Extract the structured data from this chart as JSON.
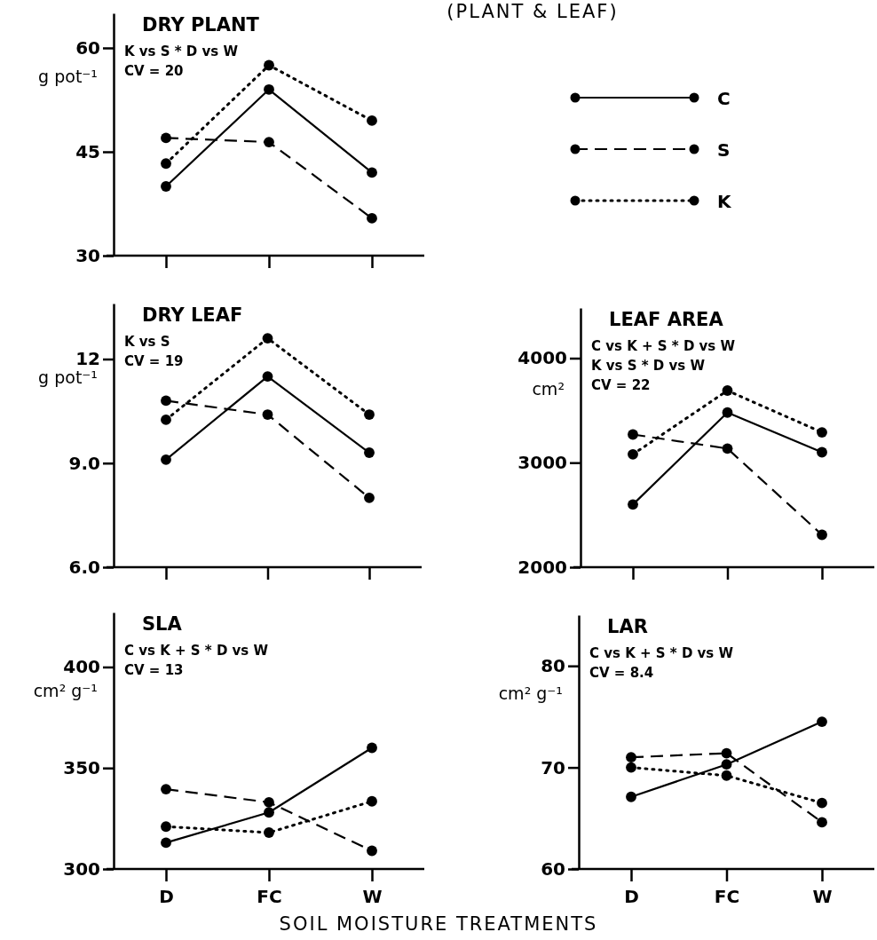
{
  "chart_data": [
    {
      "type": "line",
      "title": "DRY PLANT",
      "ylabel": "g pot⁻¹",
      "annotations": [
        "(PLANT & LEAF)",
        "K vs S * D vs W",
        "CV = 20"
      ],
      "categories": [
        null,
        null,
        null
      ],
      "ylim": [
        30,
        65
      ],
      "yticks": [
        30,
        45,
        60
      ],
      "tick_labels": "y",
      "marker": "circle",
      "legend": "right",
      "series": [
        {
          "name": "C",
          "color": "#000000",
          "line_style": "solid",
          "values": [
            40,
            54,
            42
          ]
        },
        {
          "name": "S",
          "color": "#000000",
          "line_style": "dashed",
          "values": [
            47,
            46.4,
            35.4
          ]
        },
        {
          "name": "K",
          "color": "#000000",
          "line_style": "dotted",
          "values": [
            43.3,
            57.5,
            49.5
          ]
        }
      ]
    },
    {
      "type": "line",
      "title": "DRY LEAF",
      "ylabel": "g pot⁻¹",
      "annotations": [
        "K vs S",
        "CV = 19"
      ],
      "categories": [
        null,
        null,
        null
      ],
      "ylim": [
        6,
        13.6
      ],
      "yticks": [
        {
          "value": 6,
          "label": "6.0"
        },
        {
          "value": 9,
          "label": "9.0"
        },
        12
      ],
      "tick_labels": "y",
      "marker": "circle",
      "series": [
        {
          "color": "#000000",
          "line_style": "solid",
          "values": [
            9.1,
            11.5,
            9.3
          ]
        },
        {
          "color": "#000000",
          "line_style": "dashed",
          "values": [
            10.8,
            10.4,
            8.0
          ]
        },
        {
          "color": "#000000",
          "line_style": "dotted",
          "values": [
            10.25,
            12.6,
            10.4
          ]
        }
      ]
    },
    {
      "type": "line",
      "title": "LEAF AREA",
      "ylabel": "cm²",
      "annotations": [
        "C vs K + S * D vs W",
        "K vs S * D vs W",
        "CV = 22"
      ],
      "categories": [
        null,
        null,
        null
      ],
      "ylim": [
        2000,
        4480
      ],
      "yticks": [
        2000,
        3000,
        4000
      ],
      "tick_labels": "y",
      "marker": "circle",
      "series": [
        {
          "color": "#000000",
          "line_style": "solid",
          "values": [
            2600,
            3480,
            3100
          ]
        },
        {
          "color": "#000000",
          "line_style": "dashed",
          "values": [
            3270,
            3135,
            2310
          ]
        },
        {
          "color": "#000000",
          "line_style": "dotted",
          "values": [
            3080,
            3690,
            3290
          ]
        }
      ]
    },
    {
      "type": "line",
      "title": "SLA",
      "ylabel": "cm² g⁻¹",
      "xlabel": "SOIL MOISTURE TREATMENTS",
      "annotations": [
        "C vs K + S * D vs W",
        "CV = 13"
      ],
      "categories": [
        "D",
        "FC",
        "W"
      ],
      "ylim": [
        300,
        427
      ],
      "yticks": [
        300,
        350,
        400
      ],
      "marker": "circle",
      "series": [
        {
          "color": "#000000",
          "line_style": "solid",
          "values": [
            313,
            328,
            360
          ]
        },
        {
          "color": "#000000",
          "line_style": "dashed",
          "values": [
            339.5,
            333,
            309
          ]
        },
        {
          "color": "#000000",
          "line_style": "dotted",
          "values": [
            321,
            318,
            333.5
          ]
        }
      ]
    },
    {
      "type": "line",
      "title": "LAR",
      "ylabel": "cm² g⁻¹",
      "annotations": [
        "C vs K + S * D vs W",
        "CV = 8.4"
      ],
      "categories": [
        "D",
        "FC",
        "W"
      ],
      "ylim": [
        60,
        85
      ],
      "yticks": [
        60,
        70,
        80
      ],
      "marker": "circle",
      "series": [
        {
          "color": "#000000",
          "line_style": "solid",
          "values": [
            67.1,
            70.3,
            74.5
          ]
        },
        {
          "color": "#000000",
          "line_style": "dashed",
          "values": [
            71,
            71.4,
            64.6
          ]
        },
        {
          "color": "#000000",
          "line_style": "dotted",
          "values": [
            70,
            69.2,
            66.5
          ]
        }
      ]
    }
  ]
}
